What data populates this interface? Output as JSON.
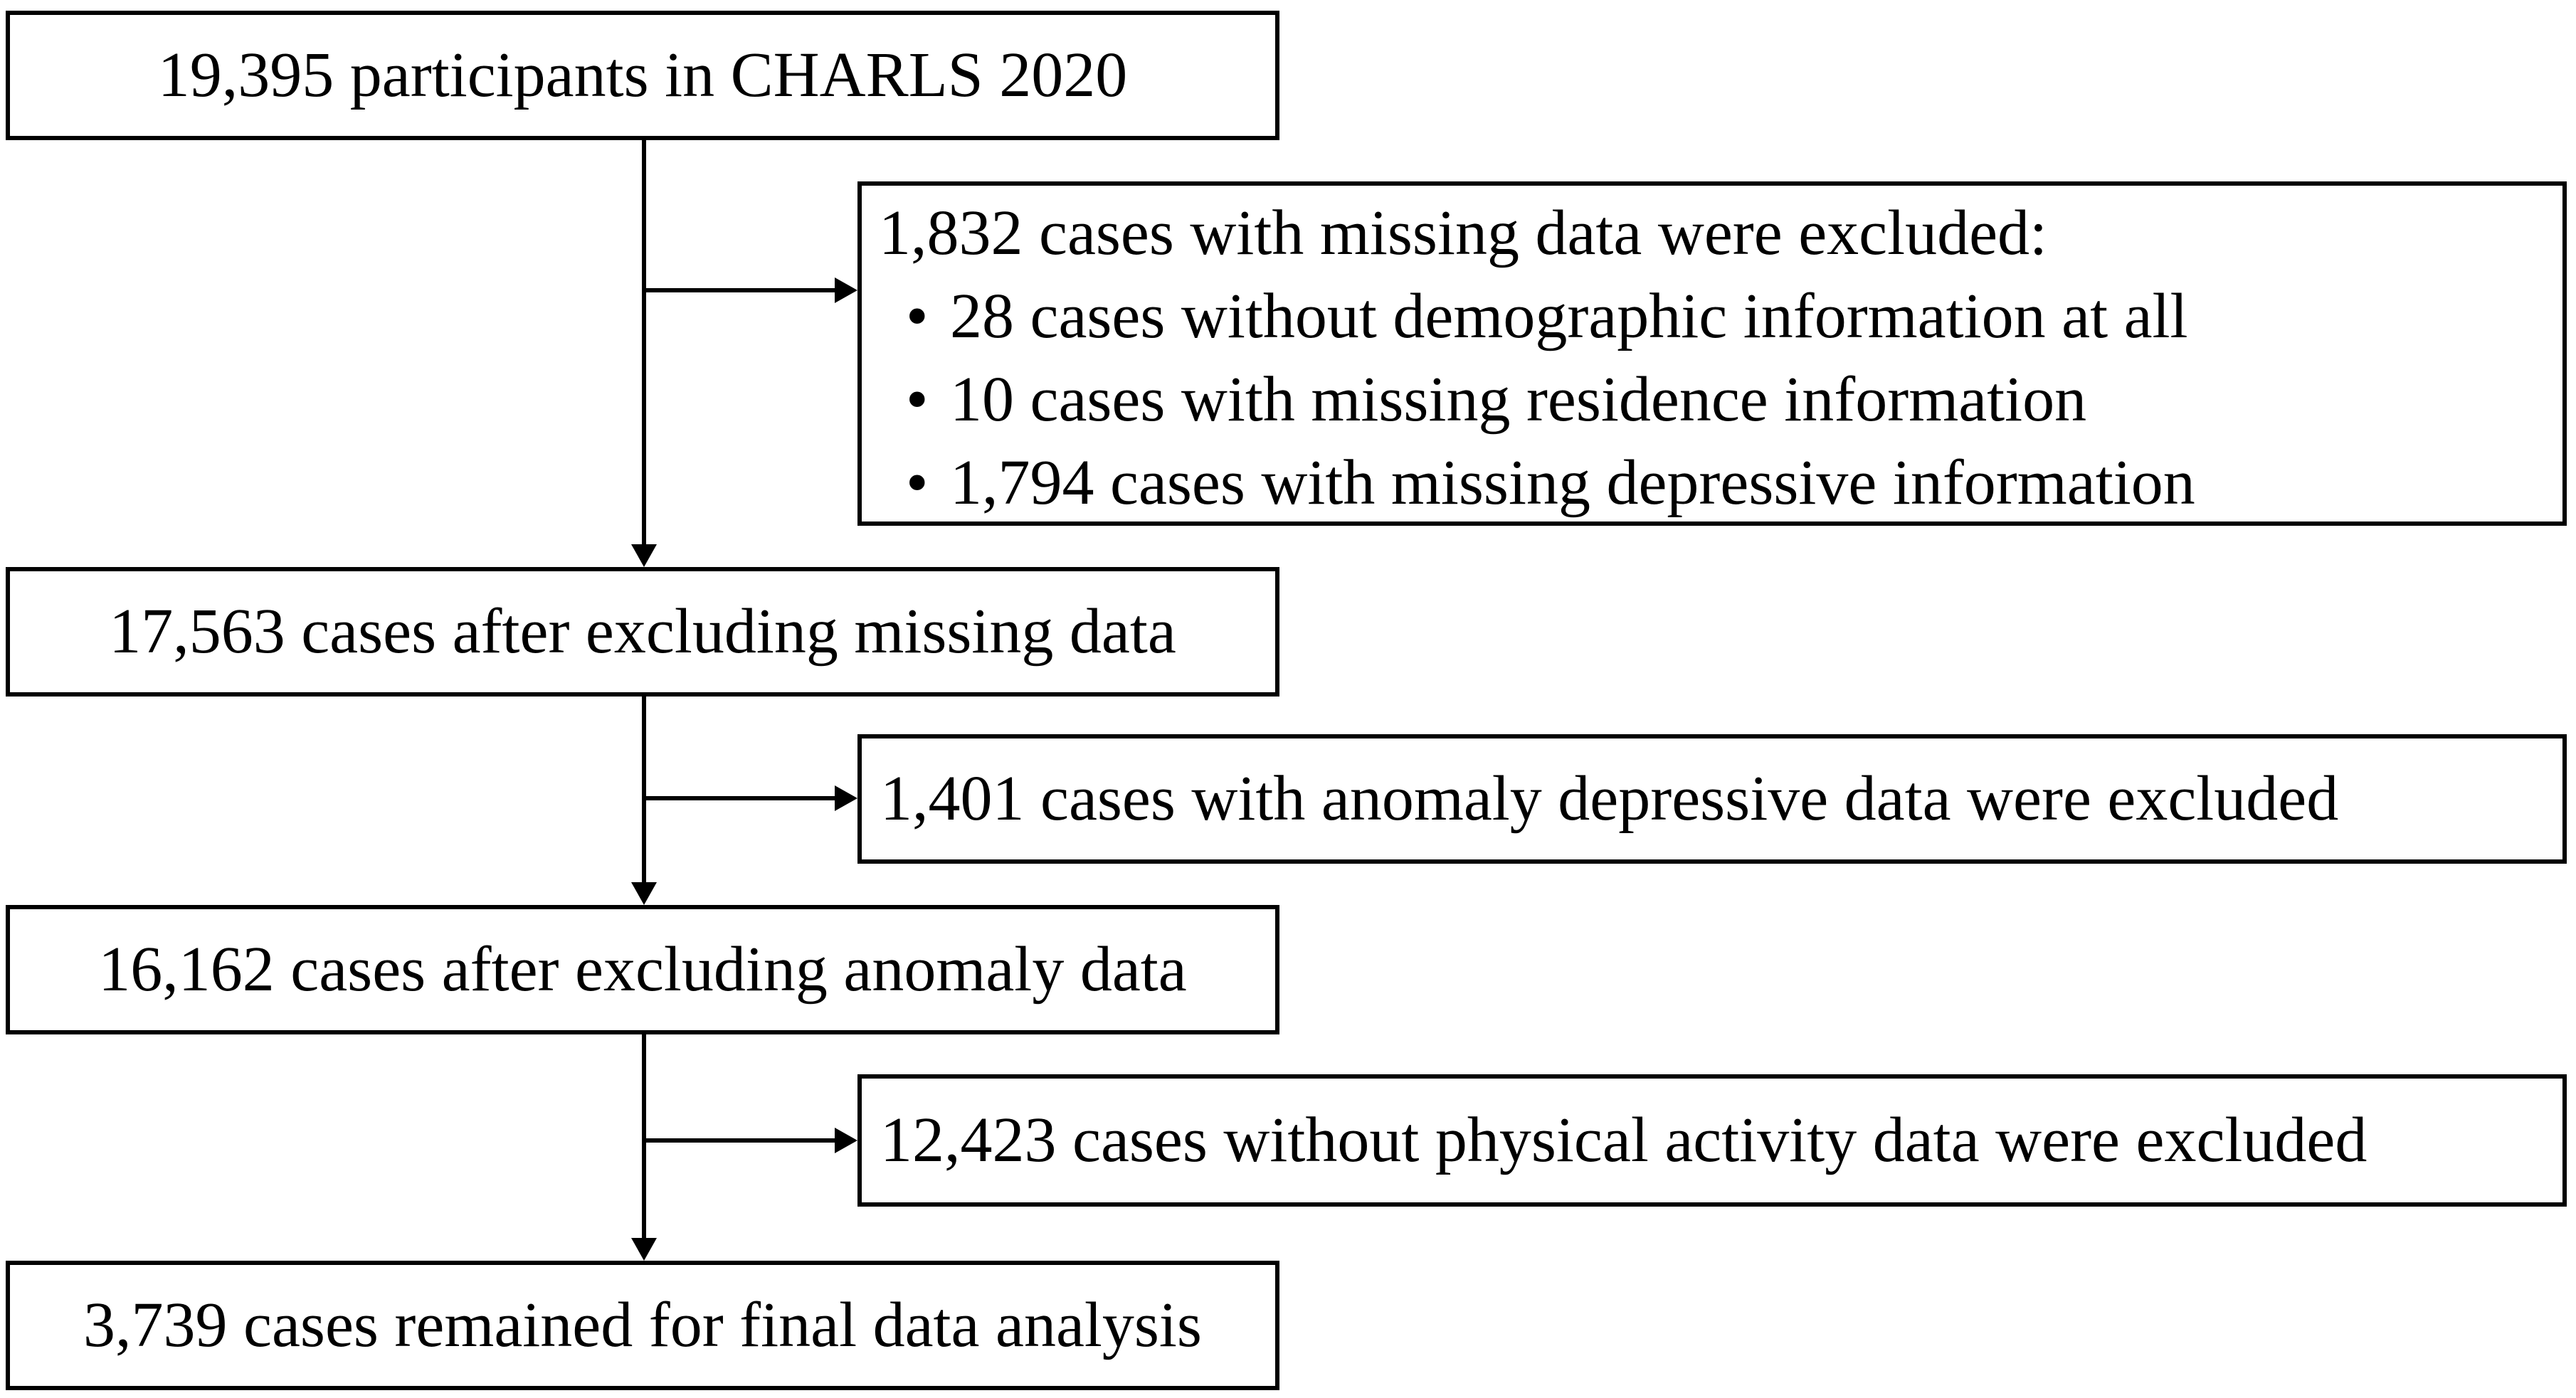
{
  "flow": {
    "bullet_char": "•",
    "colors": {
      "line": "#000000",
      "text": "#000000",
      "background": "#ffffff"
    },
    "main_boxes": [
      {
        "text": "19,395 participants in CHARLS 2020"
      },
      {
        "text": "17,563 cases after excluding missing data"
      },
      {
        "text": "16,162 cases after excluding anomaly data"
      },
      {
        "text": "3,739 cases remained for final data analysis"
      }
    ],
    "exclusion_boxes": [
      {
        "title": "1,832 cases with missing data were excluded:",
        "bullets": [
          "28 cases without demographic information at all",
          "10 cases with missing residence information",
          "1,794 cases with missing depressive information"
        ]
      },
      {
        "text": "1,401 cases with anomaly depressive data were excluded"
      },
      {
        "text": "12,423 cases without physical activity data were excluded"
      }
    ]
  }
}
